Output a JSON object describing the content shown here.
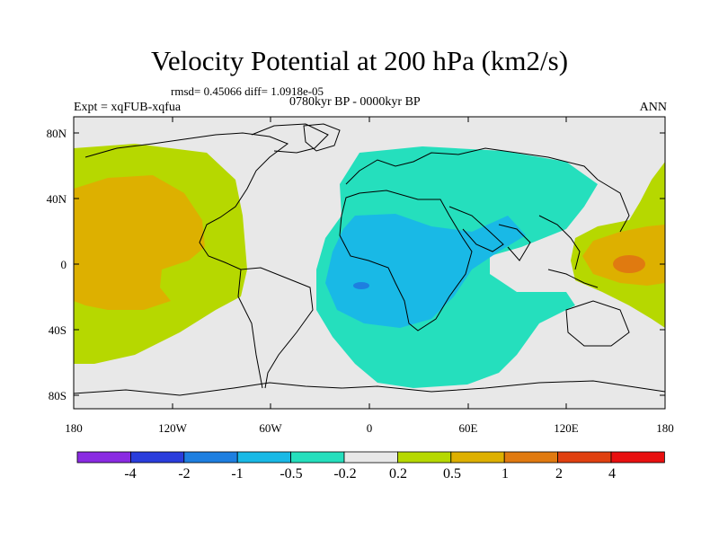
{
  "title": "Velocity Potential at 200 hPa (km2/s)",
  "stats": "rmsd= 0.45066 diff= 1.0918e-05",
  "period": "0780kyr BP - 0000kyr BP",
  "experiment": "Expt = xqFUB-xqfua",
  "season": "ANN",
  "lat_ticks": [
    "80N",
    "40N",
    "0",
    "40S",
    "80S"
  ],
  "lon_ticks": [
    "180",
    "120W",
    "60W",
    "0",
    "60E",
    "120E",
    "180"
  ],
  "colorbar": {
    "labels": [
      "-4",
      "-2",
      "-1",
      "-0.5",
      "-0.2",
      "0.2",
      "0.5",
      "1",
      "2",
      "4"
    ],
    "colors": [
      "#8a2be2",
      "#2a3ddc",
      "#1e7fe0",
      "#19b9e6",
      "#25dfbd",
      "#e8e8e8",
      "#b6d800",
      "#ddb000",
      "#e07a10",
      "#e04010",
      "#e81010"
    ]
  },
  "colors": {
    "land_bg": "#e8e8e8",
    "pos1": "#b6d800",
    "pos2": "#ddb000",
    "pos3": "#e07a10",
    "neg1": "#25dfbd",
    "neg2": "#19b9e6",
    "neg3": "#1e7fe0"
  }
}
